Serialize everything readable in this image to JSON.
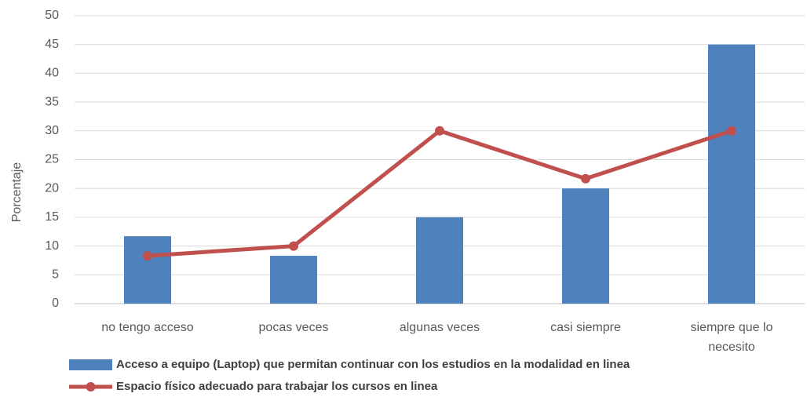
{
  "chart_data": {
    "type": "bar",
    "y_label": "Porcentaje",
    "categories": [
      "no tengo acceso",
      "pocas veces",
      "algunas veces",
      "casi siempre",
      "siempre que lo necesito"
    ],
    "series": [
      {
        "name": "Acceso a equipo (Laptop) que permitan continuar con los estudios en la modalidad en linea",
        "color": "#4f81bd",
        "kind": "bar",
        "values": [
          11.7,
          8.3,
          15,
          20,
          45
        ]
      },
      {
        "name": "Espacio físico adecuado para trabajar los cursos en linea",
        "color": "#c0504d",
        "kind": "line",
        "values": [
          8.3,
          10,
          30,
          21.7,
          30
        ]
      }
    ],
    "ylim": [
      0,
      50
    ],
    "yticks": [
      0,
      5,
      10,
      15,
      20,
      25,
      30,
      35,
      40,
      45,
      50
    ],
    "grid": true
  }
}
